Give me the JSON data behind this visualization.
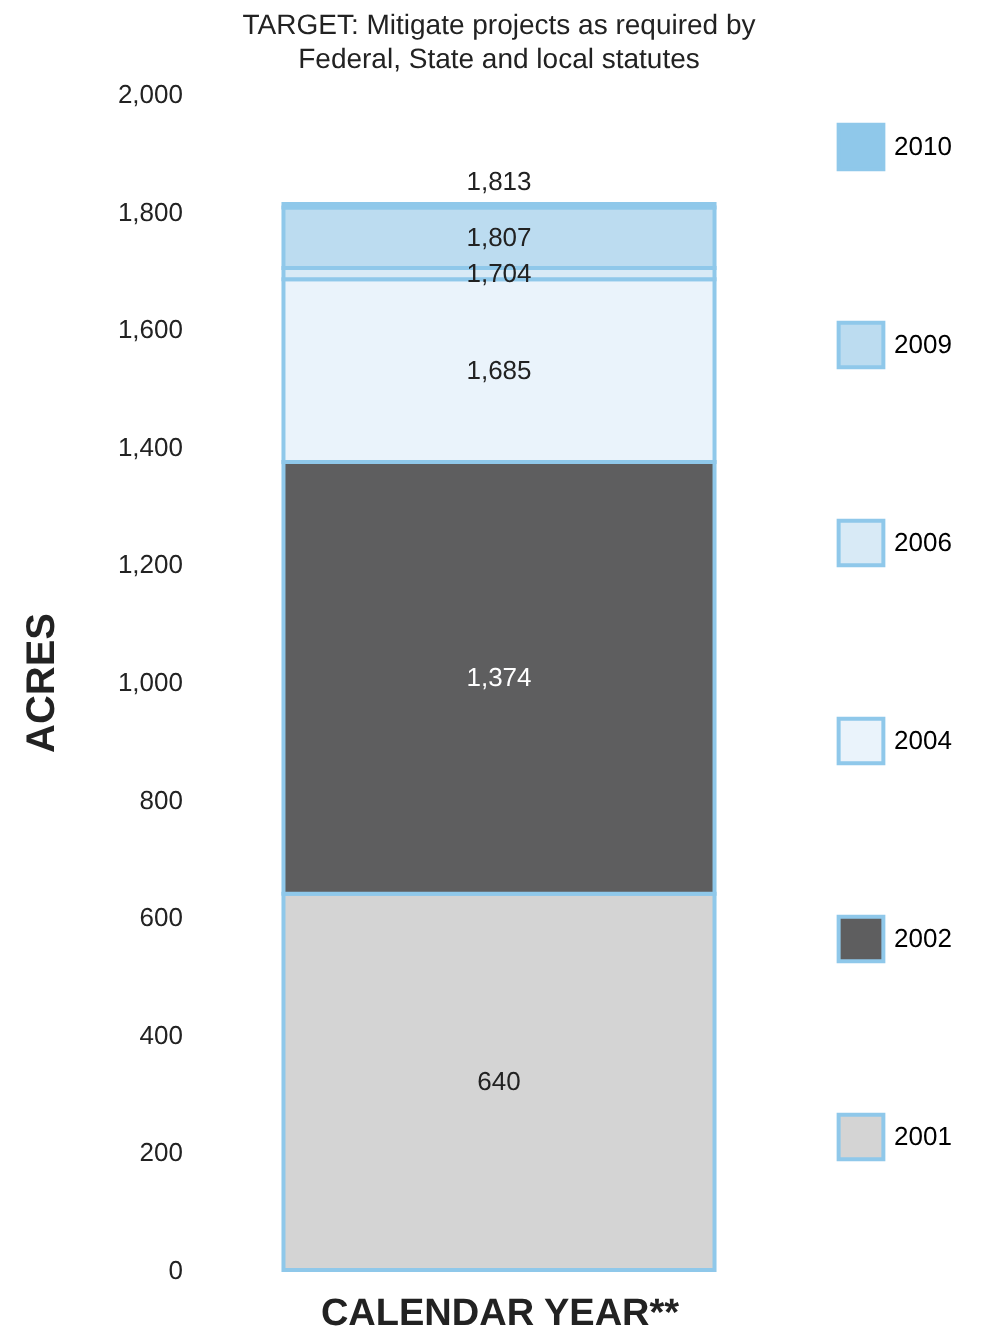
{
  "chart_data": {
    "type": "bar",
    "stacked": true,
    "annotations": [
      "640",
      "1,374",
      "1,685",
      "1,704",
      "1,807",
      "1,813"
    ],
    "title": "TARGET: Mitigate projects as required by Federal, State and local statutes",
    "xlabel": "CALENDAR YEAR**",
    "ylabel": "ACRES",
    "categories": [
      null
    ],
    "ylim": [
      0,
      2000
    ],
    "yticks": [
      0,
      200,
      400,
      600,
      800,
      {
        "value": 1000,
        "label": "1,000"
      },
      {
        "value": 1200,
        "label": "1,200"
      },
      {
        "value": 1400,
        "label": "1,400"
      },
      {
        "value": 1600,
        "label": "1,600"
      },
      {
        "value": 1800,
        "label": "1,800"
      },
      {
        "value": 2000,
        "label": "2,000"
      }
    ],
    "grid": false,
    "legend": "right",
    "series": [
      {
        "name": "2001",
        "color": "#d4d4d4",
        "values": [
          640
        ]
      },
      {
        "name": "2002",
        "color": "#5e5e5f",
        "values": [
          734
        ]
      },
      {
        "name": "2004",
        "color": "#eaf3fb",
        "values": [
          311
        ]
      },
      {
        "name": "2006",
        "color": "#d8eaf6",
        "values": [
          19
        ]
      },
      {
        "name": "2009",
        "color": "#bcdcf0",
        "values": [
          103
        ]
      },
      {
        "name": "2010",
        "color": "#8fc8ea",
        "values": [
          6
        ]
      }
    ]
  }
}
